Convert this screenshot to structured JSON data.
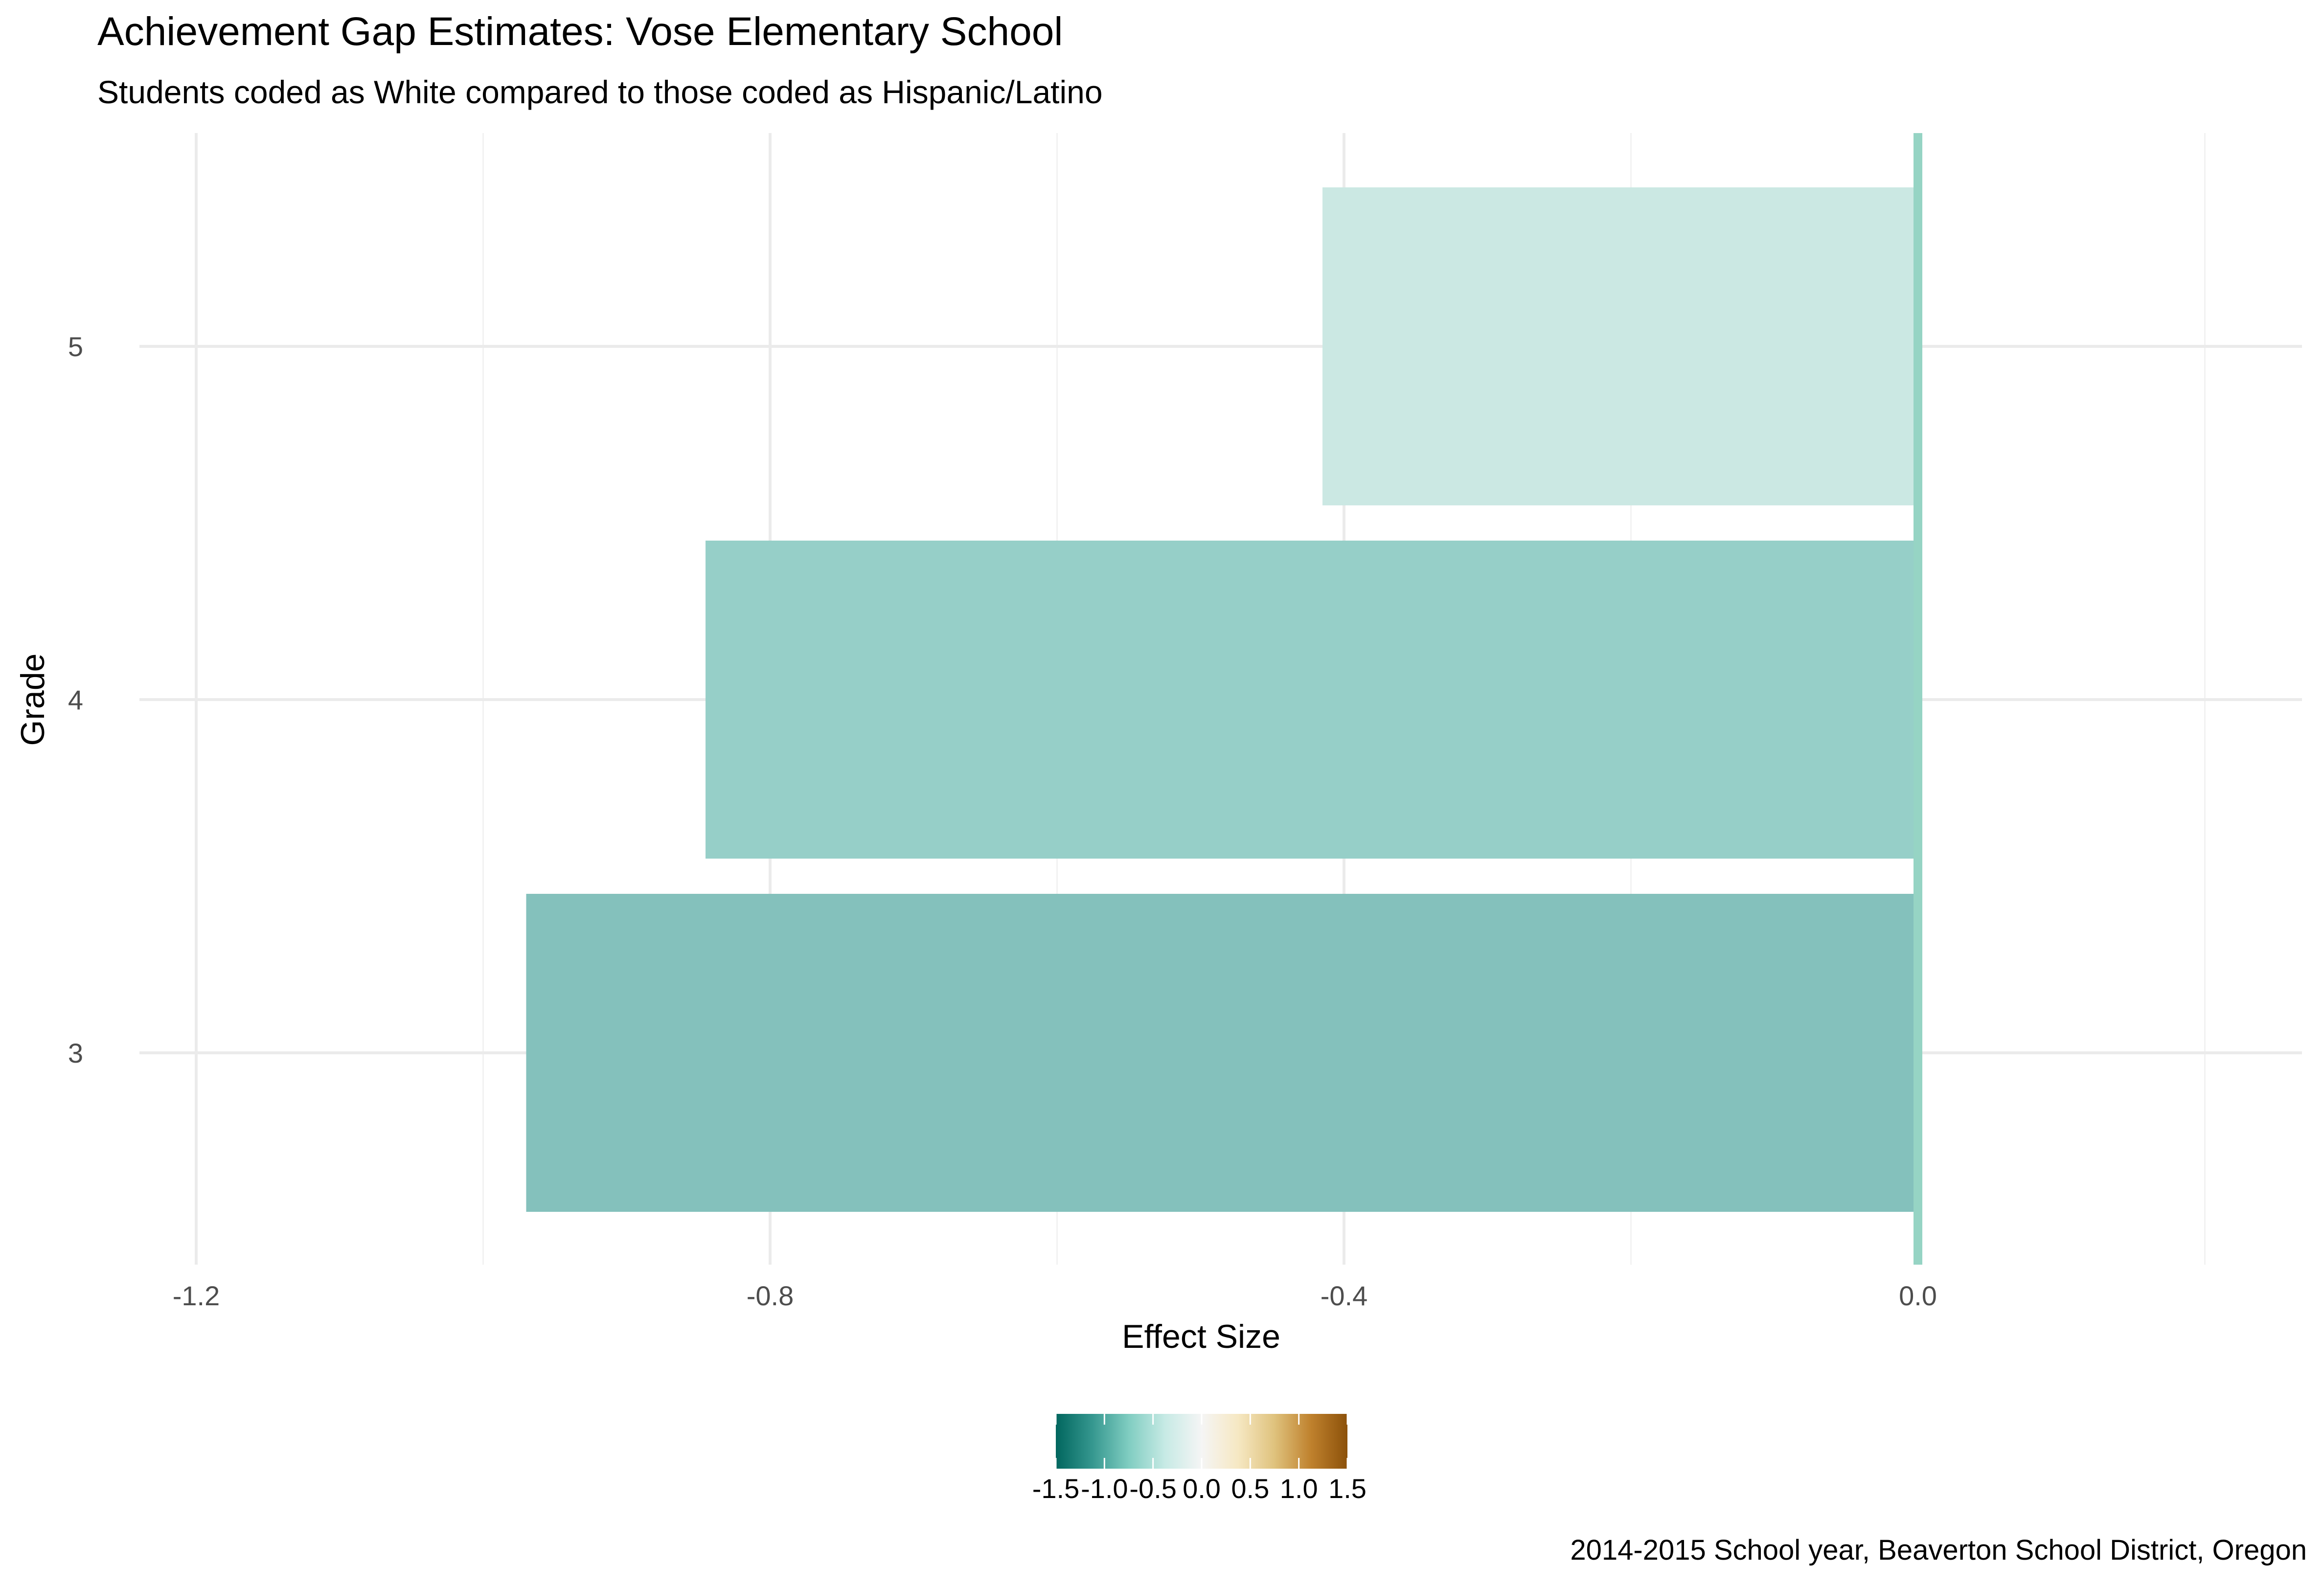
{
  "chart_data": {
    "type": "bar",
    "orientation": "horizontal",
    "title": "Achievement Gap Estimates: Vose Elementary School",
    "subtitle": "Students coded as White compared to those coded as Hispanic/Latino",
    "caption": "2014-2015 School year, Beaverton School District, Oregon",
    "xlabel": "Effect Size",
    "ylabel": "Grade",
    "categories": [
      "3",
      "4",
      "5"
    ],
    "values": [
      -0.97,
      -0.845,
      -0.415
    ],
    "bar_colors": [
      "#84c1bc",
      "#96cfc8",
      "#cbe8e3"
    ],
    "xlim": [
      -1.25,
      0.2
    ],
    "x_ticks": [
      -1.2,
      -0.8,
      -0.4,
      0.0
    ],
    "x_tick_labels": [
      "-1.2",
      "-0.8",
      "-0.4",
      "0.0"
    ],
    "reference_line": {
      "x": 0,
      "color": "#96d4c4"
    },
    "grid": true,
    "legend": {
      "type": "colorbar",
      "placement": "bottom",
      "range": [
        -1.5,
        1.5
      ],
      "ticks": [
        -1.5,
        -1.0,
        -0.5,
        0.0,
        0.5,
        1.0,
        1.5
      ],
      "tick_labels": [
        "-1.5",
        "-1.0",
        "-0.5",
        "0.0",
        "0.5",
        "1.0",
        "1.5"
      ],
      "colors": [
        "#01665e",
        "#35978f",
        "#80cdc1",
        "#c7eae5",
        "#f5f5f5",
        "#f6e8c3",
        "#dfc27d",
        "#bf812d",
        "#8c510a"
      ]
    }
  }
}
